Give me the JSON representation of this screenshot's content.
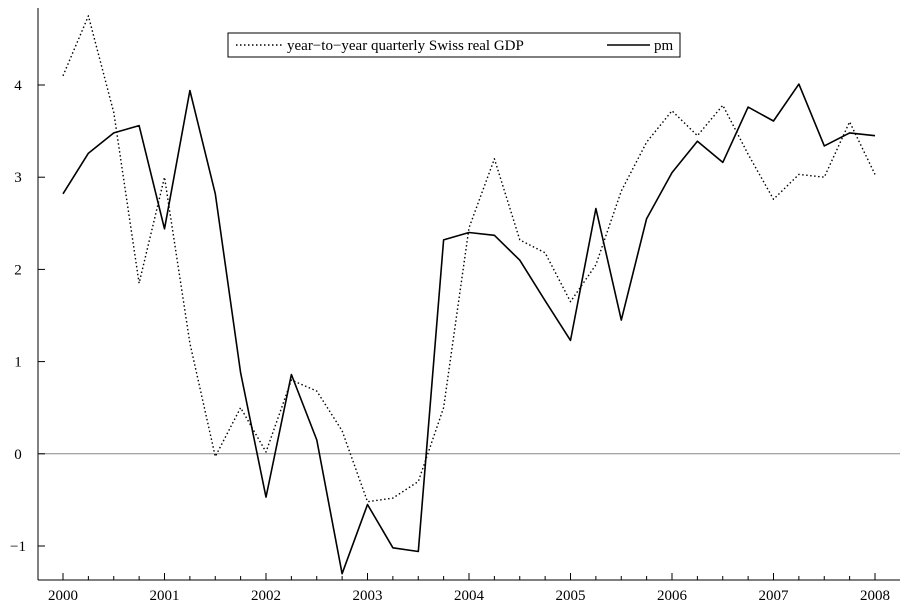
{
  "chart_data": {
    "type": "line",
    "title": "",
    "xlabel": "",
    "ylabel": "",
    "xlim": [
      2000,
      2008.3
    ],
    "ylim": [
      -1.35,
      4.85
    ],
    "xticks": [
      2000,
      2001,
      2002,
      2003,
      2004,
      2005,
      2006,
      2007,
      2008
    ],
    "yticks": [
      -1,
      0,
      1,
      2,
      3,
      4
    ],
    "xtick_labels": [
      "2000",
      "2001",
      "2002",
      "2003",
      "2004",
      "2005",
      "2006",
      "2007",
      "2008"
    ],
    "ytick_labels": [
      "−1",
      "0",
      "1",
      "2",
      "3",
      "4"
    ],
    "zero_line": true,
    "grid": false,
    "legend_position": "top-center",
    "x": [
      2000,
      2000.25,
      2000.5,
      2000.75,
      2001,
      2001.25,
      2001.5,
      2001.75,
      2002,
      2002.25,
      2002.5,
      2002.75,
      2003,
      2003.25,
      2003.5,
      2003.75,
      2004,
      2004.25,
      2004.5,
      2004.75,
      2005,
      2005.25,
      2005.5,
      2005.75,
      2006,
      2006.25,
      2006.5,
      2006.75,
      2007,
      2007.25,
      2007.5,
      2007.75,
      2008
    ],
    "series": [
      {
        "name": "year−to−year quarterly Swiss real GDP",
        "style": "dotted",
        "color": "#000000",
        "values": [
          4.1,
          4.75,
          3.7,
          1.85,
          3.0,
          1.2,
          -0.03,
          0.5,
          0.02,
          0.8,
          0.68,
          0.25,
          -0.52,
          -0.48,
          -0.3,
          0.5,
          2.45,
          3.2,
          2.32,
          2.18,
          1.65,
          2.05,
          2.85,
          3.38,
          3.72,
          3.45,
          3.78,
          3.25,
          2.76,
          3.03,
          3.0,
          3.6,
          3.03
        ]
      },
      {
        "name": "pm",
        "style": "solid",
        "color": "#000000",
        "values": [
          2.82,
          3.26,
          3.48,
          3.56,
          2.44,
          3.94,
          2.82,
          0.88,
          -0.47,
          0.86,
          0.15,
          -1.3,
          -0.55,
          -1.02,
          -1.06,
          2.32,
          2.4,
          2.37,
          2.1,
          1.66,
          1.23,
          2.66,
          1.45,
          2.55,
          3.05,
          3.39,
          3.16,
          3.76,
          3.61,
          4.01,
          3.34,
          3.48,
          3.45
        ]
      }
    ]
  }
}
